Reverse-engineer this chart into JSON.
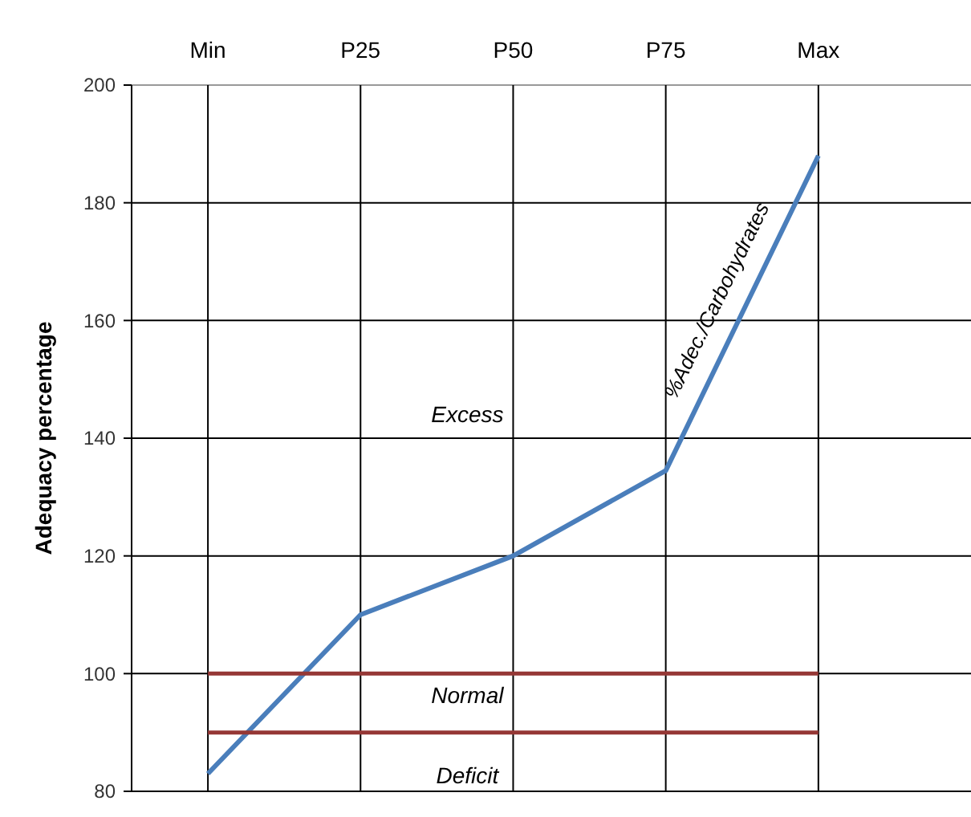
{
  "chart_data": {
    "type": "line",
    "ylabel": "Adequacy percentage",
    "categories": [
      "Min",
      "P25",
      "P50",
      "P75",
      "Max"
    ],
    "series": [
      {
        "name": "%Adec./Carbohydrates",
        "color": "#4a7ebb",
        "values": [
          83,
          110,
          120,
          134.5,
          188
        ]
      },
      {
        "color": "#953735",
        "values": [
          100,
          100,
          100,
          100,
          100
        ]
      },
      {
        "color": "#953735",
        "values": [
          90,
          90,
          90,
          90,
          90
        ]
      }
    ],
    "ylim": [
      80,
      200
    ],
    "yticks": [
      80,
      100,
      120,
      140,
      160,
      180,
      200
    ],
    "grid": true,
    "marker": "none",
    "line_style": "solid",
    "annotations": [
      "Excess",
      "Normal",
      "Deficit"
    ]
  }
}
